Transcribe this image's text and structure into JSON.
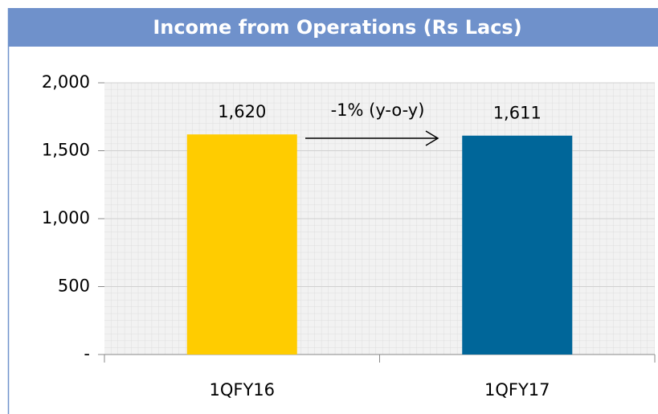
{
  "chart_data": {
    "type": "bar",
    "title": "Income from Operations (Rs Lacs)",
    "categories": [
      "1QFY16",
      "1QFY17"
    ],
    "values": [
      1620,
      1611
    ],
    "value_labels": [
      "1,620",
      "1,611"
    ],
    "colors": [
      "#ffcc00",
      "#006699"
    ],
    "annotation": "-1% (y-o-y)",
    "ylim": [
      0,
      2000
    ],
    "yticks": [
      {
        "value": 0,
        "label": "-"
      },
      500,
      {
        "value": 1000,
        "label": "1,000"
      },
      {
        "value": 1500,
        "label": "1,500"
      },
      {
        "value": 2000,
        "label": "2,000"
      }
    ],
    "grid": true
  }
}
